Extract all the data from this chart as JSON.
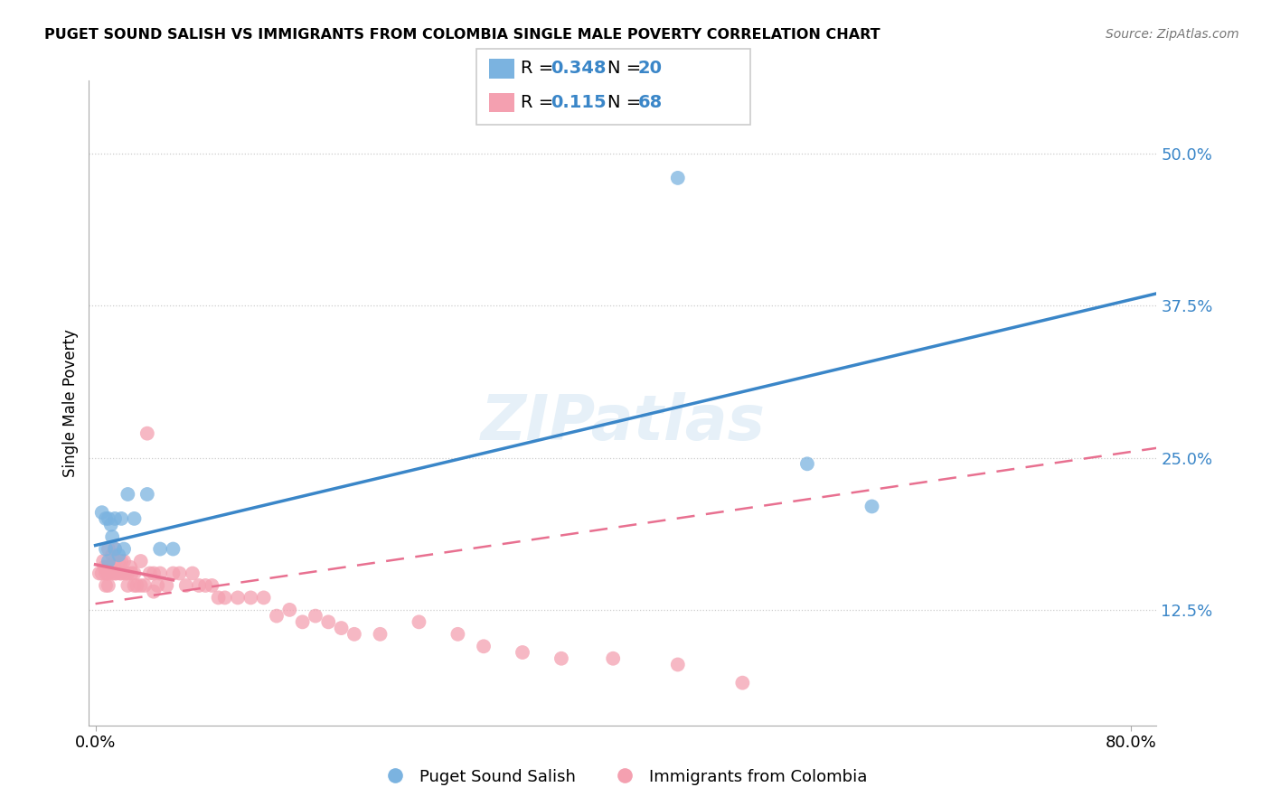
{
  "title": "PUGET SOUND SALISH VS IMMIGRANTS FROM COLOMBIA SINGLE MALE POVERTY CORRELATION CHART",
  "source": "Source: ZipAtlas.com",
  "ylabel": "Single Male Poverty",
  "ytick_vals": [
    0.125,
    0.25,
    0.375,
    0.5
  ],
  "ytick_labels": [
    "12.5%",
    "25.0%",
    "37.5%",
    "50.0%"
  ],
  "xtick_vals": [
    0.0,
    0.2,
    0.4,
    0.6,
    0.8
  ],
  "xtick_labels": [
    "0.0%",
    "",
    "",
    "",
    "80.0%"
  ],
  "xlim": [
    -0.005,
    0.82
  ],
  "ylim": [
    0.03,
    0.56
  ],
  "legend1_r": "0.348",
  "legend1_n": "20",
  "legend2_r": "0.115",
  "legend2_n": "68",
  "legend_bottom_label1": "Puget Sound Salish",
  "legend_bottom_label2": "Immigrants from Colombia",
  "blue_color": "#7bb3e0",
  "pink_color": "#f4a0b0",
  "blue_line_color": "#3a86c8",
  "pink_line_color": "#e87090",
  "r_n_color": "#3a86c8",
  "watermark": "ZIPatlas",
  "grid_color": "#cccccc",
  "blue_x": [
    0.005,
    0.008,
    0.01,
    0.012,
    0.013,
    0.015,
    0.015,
    0.018,
    0.02,
    0.022,
    0.025,
    0.03,
    0.04,
    0.05,
    0.06,
    0.45,
    0.55,
    0.6,
    0.008,
    0.01
  ],
  "blue_y": [
    0.205,
    0.2,
    0.2,
    0.195,
    0.185,
    0.2,
    0.175,
    0.17,
    0.2,
    0.175,
    0.22,
    0.2,
    0.22,
    0.175,
    0.175,
    0.48,
    0.245,
    0.21,
    0.175,
    0.165
  ],
  "pink_x": [
    0.003,
    0.005,
    0.006,
    0.007,
    0.008,
    0.008,
    0.009,
    0.01,
    0.01,
    0.01,
    0.012,
    0.013,
    0.013,
    0.015,
    0.015,
    0.015,
    0.016,
    0.018,
    0.019,
    0.02,
    0.02,
    0.022,
    0.023,
    0.025,
    0.025,
    0.027,
    0.028,
    0.03,
    0.03,
    0.032,
    0.035,
    0.035,
    0.038,
    0.04,
    0.042,
    0.045,
    0.045,
    0.048,
    0.05,
    0.055,
    0.06,
    0.065,
    0.07,
    0.075,
    0.08,
    0.085,
    0.09,
    0.095,
    0.1,
    0.11,
    0.12,
    0.13,
    0.14,
    0.15,
    0.16,
    0.17,
    0.18,
    0.19,
    0.2,
    0.22,
    0.25,
    0.28,
    0.3,
    0.33,
    0.36,
    0.4,
    0.45,
    0.5
  ],
  "pink_y": [
    0.155,
    0.155,
    0.165,
    0.16,
    0.155,
    0.145,
    0.16,
    0.175,
    0.155,
    0.145,
    0.16,
    0.17,
    0.155,
    0.175,
    0.165,
    0.155,
    0.155,
    0.165,
    0.155,
    0.165,
    0.155,
    0.165,
    0.155,
    0.155,
    0.145,
    0.16,
    0.155,
    0.155,
    0.145,
    0.145,
    0.165,
    0.145,
    0.145,
    0.27,
    0.155,
    0.14,
    0.155,
    0.145,
    0.155,
    0.145,
    0.155,
    0.155,
    0.145,
    0.155,
    0.145,
    0.145,
    0.145,
    0.135,
    0.135,
    0.135,
    0.135,
    0.135,
    0.12,
    0.125,
    0.115,
    0.12,
    0.115,
    0.11,
    0.105,
    0.105,
    0.115,
    0.105,
    0.095,
    0.09,
    0.085,
    0.085,
    0.08,
    0.065
  ]
}
